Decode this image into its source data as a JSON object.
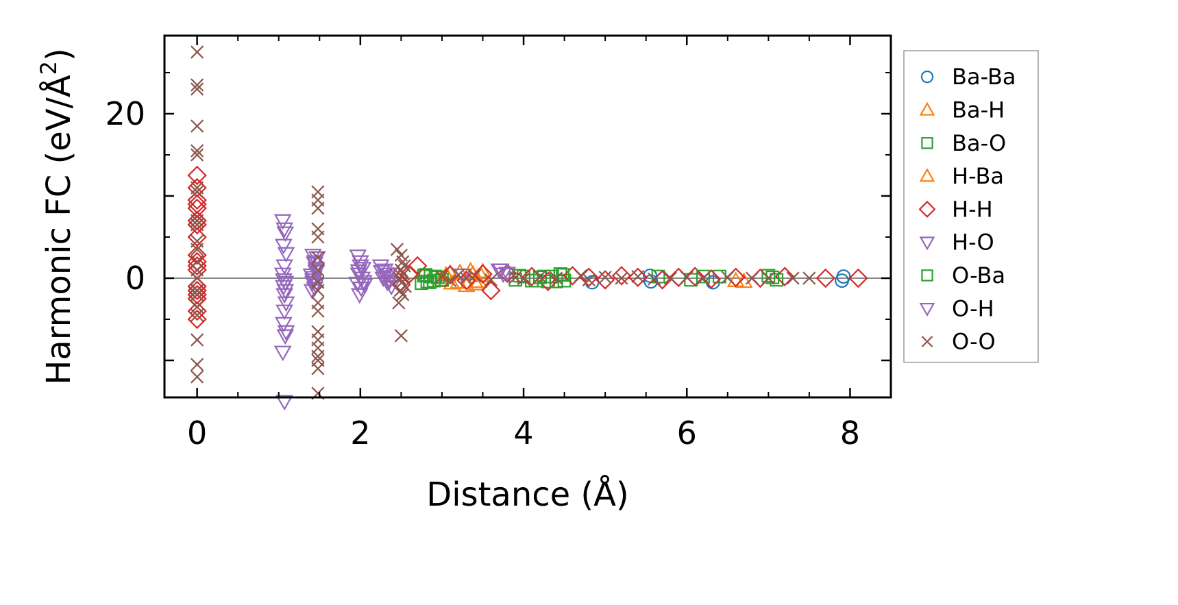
{
  "chart_data": {
    "type": "scatter",
    "title": "",
    "xlabel": "Distance (Å)",
    "ylabel_main": "Harmonic FC (eV/Å",
    "ylabel_sup": "2",
    "ylabel_close": ")",
    "xlim": [
      -0.4,
      8.5
    ],
    "ylim": [
      -14.5,
      29.5
    ],
    "xticks": [
      0,
      2,
      4,
      6,
      8
    ],
    "yticks": [
      0,
      20
    ],
    "xtick_labels": [
      "0",
      "2",
      "4",
      "6",
      "8"
    ],
    "ytick_labels": [
      "0",
      "20"
    ],
    "legend_position": "outside-right",
    "zero_line": true,
    "series": [
      {
        "name": "Ba-Ba",
        "marker": "circle",
        "color": "#1f77b4",
        "x": [
          4.84,
          5.55,
          5.56,
          6.32,
          7.9,
          7.92
        ],
        "y": [
          -0.5,
          0.3,
          -0.4,
          -0.5,
          -0.3,
          0.2
        ]
      },
      {
        "name": "Ba-H",
        "marker": "triangle-up",
        "color": "#ff7f0e",
        "x": [
          2.98,
          3.05,
          3.12,
          3.22,
          3.3,
          3.38,
          3.45,
          3.5,
          6.7
        ],
        "y": [
          -0.3,
          0.4,
          -0.6,
          0.7,
          -0.9,
          0.5,
          -0.4,
          0.8,
          -0.4
        ]
      },
      {
        "name": "Ba-O",
        "marker": "square",
        "color": "#2ca02c",
        "x": [
          2.75,
          2.78,
          2.82,
          2.86,
          2.9,
          2.95,
          3.9,
          4.0,
          4.1,
          4.2,
          4.3,
          4.35,
          4.45,
          4.5,
          5.65,
          6.05,
          6.4,
          7.0,
          7.1
        ],
        "y": [
          -0.6,
          0.3,
          -0.4,
          0.2,
          -0.3,
          0.1,
          -0.2,
          0.2,
          -0.3,
          0.1,
          -0.4,
          0.2,
          0.5,
          -0.3,
          0.2,
          -0.2,
          0.2,
          0.3,
          -0.2
        ]
      },
      {
        "name": "H-Ba",
        "marker": "triangle-up",
        "color": "#ff7f0e",
        "x": [
          3.1,
          3.2,
          3.35,
          3.42,
          3.48,
          6.6
        ],
        "y": [
          0.6,
          -0.5,
          0.9,
          -0.7,
          0.3,
          -0.3
        ]
      },
      {
        "name": "H-H",
        "marker": "diamond",
        "color": "#d62728",
        "x": [
          0.0,
          0.0,
          0.0,
          0.0,
          0.0,
          0.0,
          0.0,
          0.0,
          0.0,
          0.0,
          0.0,
          0.0,
          0.0,
          0.0,
          0.0,
          0.0,
          0.0,
          0.0,
          2.4,
          2.5,
          2.6,
          2.7,
          3.1,
          3.3,
          3.5,
          3.6,
          3.8,
          4.1,
          4.3,
          4.6,
          4.8,
          5.0,
          5.2,
          5.4,
          5.7,
          5.9,
          6.1,
          6.3,
          6.6,
          6.9,
          7.2,
          7.7,
          8.1
        ],
        "y": [
          12.5,
          11.0,
          9.5,
          9.0,
          8.5,
          7.0,
          6.5,
          5.0,
          2.8,
          2.0,
          1.5,
          1.0,
          -1.0,
          -1.5,
          -2.0,
          -2.5,
          -4.0,
          -5.0,
          0.2,
          -0.8,
          0.5,
          1.5,
          0.4,
          -0.3,
          0.5,
          -1.5,
          0.6,
          0.2,
          -0.4,
          0.3,
          0.1,
          -0.2,
          0.3,
          0.1,
          -0.2,
          0.1,
          0.2,
          -0.1,
          0.1,
          0.0,
          0.2,
          0.0,
          0.0
        ]
      },
      {
        "name": "H-O",
        "marker": "triangle-down",
        "color": "#9467bd",
        "x": [
          1.05,
          1.07,
          1.08,
          1.06,
          1.09,
          1.07,
          1.05,
          1.08,
          1.06,
          1.07,
          1.09,
          1.06,
          1.08,
          1.05,
          1.07,
          1.42,
          1.44,
          1.46,
          1.4,
          1.43,
          1.45,
          1.41,
          1.47,
          1.44,
          1.42,
          1.46,
          1.43,
          1.97,
          2.0,
          2.03,
          1.98,
          2.02,
          1.96,
          2.01,
          1.99,
          2.05,
          2.25,
          2.3,
          2.35,
          2.28,
          2.33,
          2.38,
          2.26,
          3.7,
          3.75,
          3.8
        ],
        "y": [
          7.0,
          6.0,
          5.5,
          4.0,
          3.0,
          1.5,
          0.5,
          -0.5,
          -1.0,
          -2.0,
          -3.0,
          -5.5,
          -7.0,
          -9.0,
          -15.0,
          2.8,
          2.0,
          1.2,
          0.4,
          -0.2,
          -0.8,
          -1.5,
          2.5,
          1.8,
          -0.5,
          0.8,
          0.1,
          2.7,
          2.0,
          1.2,
          0.5,
          0.0,
          -0.6,
          -1.2,
          -2.0,
          -0.8,
          1.5,
          1.0,
          0.5,
          0.0,
          -0.5,
          -1.0,
          0.8,
          1.0,
          0.5,
          0.6
        ]
      },
      {
        "name": "O-Ba",
        "marker": "square",
        "color": "#2ca02c",
        "x": [
          2.8,
          2.85,
          2.92,
          3.0,
          3.95,
          4.15,
          4.25,
          4.4,
          4.48,
          6.2,
          7.05
        ],
        "y": [
          0.4,
          -0.5,
          0.2,
          -0.2,
          0.3,
          -0.3,
          0.2,
          -0.4,
          0.4,
          0.2,
          0.1
        ]
      },
      {
        "name": "O-H",
        "marker": "triangle-down",
        "color": "#9467bd",
        "x": [
          1.06,
          1.08,
          1.07,
          1.09,
          1.44,
          1.46,
          1.42,
          2.0,
          2.04,
          1.98,
          2.32,
          2.36,
          3.25,
          3.72
        ],
        "y": [
          -0.2,
          -1.5,
          -4.0,
          -6.5,
          -1.2,
          1.0,
          -0.2,
          1.5,
          -0.4,
          0.9,
          0.2,
          -0.3,
          0.4,
          1.0
        ]
      },
      {
        "name": "O-O",
        "marker": "x",
        "color": "#8c564b",
        "x": [
          0.0,
          0.0,
          0.0,
          0.0,
          0.0,
          0.0,
          0.0,
          0.0,
          0.0,
          0.0,
          0.0,
          0.0,
          0.0,
          0.0,
          0.0,
          0.0,
          0.0,
          0.0,
          0.0,
          0.0,
          0.0,
          0.0,
          1.48,
          1.48,
          1.48,
          1.48,
          1.48,
          1.48,
          1.48,
          1.48,
          1.48,
          1.48,
          1.48,
          1.48,
          1.48,
          1.48,
          1.48,
          1.48,
          1.48,
          1.48,
          2.45,
          2.5,
          2.52,
          2.54,
          2.5,
          2.53,
          2.48,
          2.51,
          2.55,
          2.49,
          2.52,
          2.47,
          2.5,
          3.0,
          3.1,
          3.2,
          3.3,
          3.4,
          3.6,
          3.9,
          4.0,
          4.2,
          4.4,
          4.7,
          4.8,
          5.0,
          5.2,
          5.4,
          5.6,
          5.8,
          6.0,
          6.2,
          6.5,
          6.8,
          7.0,
          7.3,
          7.5
        ],
        "y": [
          27.5,
          23.5,
          23.0,
          18.5,
          15.5,
          15.0,
          11.0,
          10.5,
          7.0,
          6.5,
          4.5,
          3.5,
          2.0,
          1.0,
          0.0,
          -1.5,
          -2.0,
          -3.5,
          -4.5,
          -7.5,
          -10.5,
          -12.0,
          10.5,
          9.5,
          8.5,
          6.0,
          5.0,
          2.5,
          1.0,
          -0.5,
          -1.5,
          -3.0,
          -4.0,
          -6.5,
          -7.5,
          -8.5,
          -9.5,
          -10.0,
          -11.0,
          -14.0,
          3.5,
          2.8,
          2.0,
          1.5,
          1.0,
          0.5,
          0.0,
          -0.5,
          -1.0,
          -1.5,
          -2.0,
          -3.0,
          -7.0,
          0.2,
          -0.3,
          0.4,
          0.0,
          0.3,
          -0.2,
          0.1,
          -0.1,
          0.2,
          0.0,
          0.3,
          -0.2,
          0.1,
          0.0,
          0.2,
          -0.1,
          0.0,
          0.1,
          0.0,
          0.1,
          0.0,
          0.0,
          0.0,
          0.0
        ]
      }
    ]
  }
}
